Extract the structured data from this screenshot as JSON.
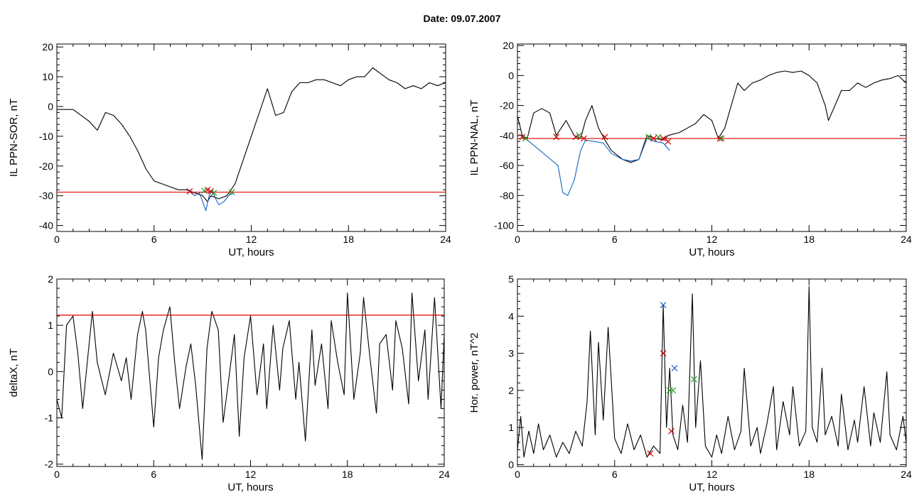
{
  "figure_title": "Date:  09.07.2007",
  "chart_data": [
    {
      "type": "line",
      "ylabel": "IL PPN-SOR, nT",
      "xlabel": "UT, hours",
      "xlim": [
        0,
        24
      ],
      "ylim": [
        -42,
        21
      ],
      "xticks": [
        0,
        6,
        12,
        18,
        24
      ],
      "yticks": [
        -40,
        -30,
        -20,
        -10,
        0,
        10,
        20
      ],
      "threshold": -28.8,
      "series": [
        {
          "color": "#000000",
          "x": [
            0,
            0.5,
            1,
            1.5,
            2,
            2.5,
            3,
            3.5,
            4,
            4.5,
            5,
            5.5,
            6,
            6.5,
            7,
            7.5,
            8,
            8.5,
            9,
            9.3,
            9.5,
            10,
            10.5,
            11,
            11.5,
            12,
            12.5,
            13,
            13.5,
            14,
            14.5,
            15,
            15.5,
            16,
            16.5,
            17,
            17.5,
            18,
            18.5,
            19,
            19.5,
            20,
            20.5,
            21,
            21.5,
            22,
            22.5,
            23,
            23.5,
            24
          ],
          "y": [
            -1,
            -1,
            -1,
            -3,
            -5,
            -8,
            -2,
            -3,
            -6,
            -10,
            -15,
            -21,
            -25,
            -26,
            -27,
            -28,
            -28,
            -29,
            -30,
            -32,
            -30,
            -31,
            -30,
            -26,
            -18,
            -10,
            -2,
            6,
            -3,
            -2,
            5,
            8,
            8,
            9,
            9,
            8,
            7,
            9,
            10,
            10,
            13,
            11,
            9,
            8,
            6,
            7,
            6,
            8,
            7,
            8
          ]
        },
        {
          "color": "#1565c0",
          "x": [
            8.2,
            8.5,
            8.8,
            9.0,
            9.2,
            9.4,
            9.6,
            9.8,
            10.0,
            10.3,
            10.6,
            10.9
          ],
          "y": [
            -28,
            -30,
            -29,
            -32,
            -35,
            -30,
            -28,
            -31,
            -33,
            -32,
            -30,
            -29
          ]
        }
      ],
      "markers": [
        {
          "x": 8.2,
          "y": -28.5,
          "color": "#cc0000"
        },
        {
          "x": 9.1,
          "y": -28.3,
          "color": "#2a9d2a"
        },
        {
          "x": 9.3,
          "y": -28.0,
          "color": "#cc0000"
        },
        {
          "x": 9.5,
          "y": -28.5,
          "color": "#cc0000"
        },
        {
          "x": 9.7,
          "y": -29.0,
          "color": "#2a9d2a"
        },
        {
          "x": 10.8,
          "y": -28.8,
          "color": "#2a9d2a"
        }
      ]
    },
    {
      "type": "line",
      "ylabel": "IL PPN-NAL, nT",
      "xlabel": "UT, hours",
      "xlim": [
        0,
        24
      ],
      "ylim": [
        -104,
        21
      ],
      "xticks": [
        0,
        6,
        12,
        18,
        24
      ],
      "yticks": [
        -100,
        -80,
        -60,
        -40,
        -20,
        0,
        20
      ],
      "threshold": -42,
      "series": [
        {
          "color": "#000000",
          "x": [
            0,
            0.3,
            0.6,
            1,
            1.5,
            2,
            2.4,
            3,
            3.5,
            3.9,
            4.2,
            4.6,
            5,
            5.4,
            5.8,
            6.5,
            7,
            7.5,
            8,
            8.5,
            9,
            9.3,
            10,
            10.5,
            11,
            11.5,
            12,
            12.4,
            12.8,
            13.2,
            13.6,
            14,
            14.5,
            15,
            15.5,
            16,
            16.5,
            17,
            17.5,
            18,
            18.5,
            19,
            19.2,
            19.6,
            20,
            20.5,
            21,
            21.5,
            22,
            22.5,
            23,
            23.5,
            24
          ],
          "y": [
            -27,
            -40,
            -42,
            -25,
            -22,
            -25,
            -40,
            -30,
            -40,
            -42,
            -30,
            -20,
            -35,
            -43,
            -50,
            -56,
            -58,
            -56,
            -40,
            -42,
            -43,
            -40,
            -38,
            -35,
            -32,
            -26,
            -30,
            -42,
            -35,
            -20,
            -5,
            -10,
            -5,
            -3,
            0,
            2,
            3,
            2,
            3,
            0,
            -5,
            -20,
            -30,
            -20,
            -10,
            -10,
            -5,
            -8,
            -5,
            -3,
            -2,
            0,
            -5
          ]
        },
        {
          "color": "#1565c0",
          "x": [
            0.2,
            0.5,
            2.5,
            2.8,
            3.1,
            3.5,
            3.9,
            4.2,
            5.3,
            5.8,
            6.5,
            7,
            7.5,
            8,
            8.5,
            9,
            9.4
          ],
          "y": [
            -40,
            -42,
            -60,
            -78,
            -80,
            -70,
            -50,
            -43,
            -45,
            -52,
            -56,
            -57,
            -56,
            -42,
            -44,
            -45,
            -50
          ]
        }
      ],
      "markers": [
        {
          "x": 0.3,
          "y": -41,
          "color": "#cc0000"
        },
        {
          "x": 0.5,
          "y": -42,
          "color": "#2a9d2a"
        },
        {
          "x": 2.4,
          "y": -41,
          "color": "#cc0000"
        },
        {
          "x": 3.6,
          "y": -41,
          "color": "#cc0000"
        },
        {
          "x": 3.8,
          "y": -40,
          "color": "#2a9d2a"
        },
        {
          "x": 4.1,
          "y": -42,
          "color": "#cc0000"
        },
        {
          "x": 5.4,
          "y": -41,
          "color": "#cc0000"
        },
        {
          "x": 8.1,
          "y": -41,
          "color": "#2a9d2a"
        },
        {
          "x": 8.4,
          "y": -42,
          "color": "#cc0000"
        },
        {
          "x": 8.7,
          "y": -41,
          "color": "#2a9d2a"
        },
        {
          "x": 9.0,
          "y": -42,
          "color": "#cc0000"
        },
        {
          "x": 9.3,
          "y": -44,
          "color": "#cc0000"
        },
        {
          "x": 12.5,
          "y": -42,
          "color": "#cc0000"
        },
        {
          "x": 12.6,
          "y": -42,
          "color": "#2a9d2a"
        }
      ]
    },
    {
      "type": "line",
      "ylabel": "deltaX, nT",
      "xlabel": "UT, hours",
      "xlim": [
        0,
        24
      ],
      "ylim": [
        -2.05,
        2
      ],
      "xticks": [
        0,
        6,
        12,
        18,
        24
      ],
      "yticks": [
        -2,
        -1,
        0,
        1,
        2
      ],
      "threshold": 1.22,
      "series": [
        {
          "color": "#000000",
          "x": [
            0,
            0.3,
            0.6,
            1,
            1.3,
            1.6,
            2,
            2.2,
            2.5,
            3,
            3.5,
            4,
            4.3,
            4.6,
            5,
            5.3,
            5.5,
            6,
            6.3,
            6.6,
            7,
            7.3,
            7.6,
            8,
            8.3,
            8.6,
            9,
            9.3,
            9.6,
            10,
            10.3,
            10.6,
            11,
            11.3,
            11.6,
            12,
            12.4,
            12.8,
            13,
            13.4,
            13.8,
            14,
            14.4,
            14.8,
            15,
            15.4,
            15.8,
            16,
            16.4,
            16.8,
            17,
            17.4,
            17.8,
            18,
            18.4,
            18.8,
            19,
            19.4,
            19.8,
            20,
            20.4,
            20.8,
            21,
            21.4,
            21.8,
            22,
            22.4,
            22.8,
            23,
            23.4,
            23.8,
            24
          ],
          "y": [
            -0.6,
            -1.0,
            1.0,
            1.2,
            0.4,
            -0.8,
            0.6,
            1.3,
            0.2,
            -0.5,
            0.4,
            -0.2,
            0.3,
            -0.6,
            0.8,
            1.3,
            0.9,
            -1.2,
            0.3,
            0.9,
            1.4,
            0.2,
            -0.8,
            0.1,
            0.6,
            -0.3,
            -1.9,
            0.5,
            1.3,
            0.9,
            -1.1,
            -0.3,
            0.8,
            -1.4,
            0.3,
            1.2,
            -0.5,
            0.6,
            -0.8,
            1.0,
            -0.4,
            0.5,
            1.1,
            -0.6,
            0.2,
            -1.5,
            0.9,
            -0.3,
            0.6,
            -0.8,
            1.1,
            0.2,
            -0.5,
            1.7,
            -0.6,
            0.4,
            1.6,
            0.3,
            -0.9,
            0.6,
            0.8,
            -0.4,
            1.1,
            0.5,
            -0.7,
            1.7,
            -0.2,
            0.9,
            -0.6,
            1.6,
            -0.8,
            0.8
          ]
        }
      ],
      "markers": []
    },
    {
      "type": "line",
      "ylabel": "Hor. power, nT^2",
      "xlabel": "UT, hours",
      "xlim": [
        0,
        24
      ],
      "ylim": [
        -0.05,
        5
      ],
      "xticks": [
        0,
        6,
        12,
        18,
        24
      ],
      "yticks": [
        0,
        1,
        2,
        3,
        4,
        5
      ],
      "threshold": null,
      "series": [
        {
          "color": "#000000",
          "x": [
            0,
            0.2,
            0.4,
            0.7,
            1,
            1.3,
            1.6,
            2,
            2.4,
            2.8,
            3.2,
            3.6,
            4,
            4.3,
            4.5,
            4.8,
            5,
            5.3,
            5.6,
            6,
            6.4,
            6.8,
            7.2,
            7.6,
            8,
            8.4,
            8.8,
            9,
            9.2,
            9.4,
            9.6,
            9.9,
            10.2,
            10.5,
            10.8,
            11,
            11.3,
            11.6,
            12,
            12.3,
            12.6,
            13,
            13.4,
            13.8,
            14,
            14.4,
            14.8,
            15,
            15.4,
            15.8,
            16,
            16.4,
            16.8,
            17,
            17.4,
            17.8,
            18,
            18.2,
            18.5,
            18.8,
            19,
            19.4,
            19.8,
            20,
            20.4,
            20.8,
            21,
            21.4,
            21.8,
            22,
            22.4,
            22.8,
            23,
            23.4,
            23.8,
            24
          ],
          "y": [
            0.4,
            1.3,
            0.2,
            0.9,
            0.3,
            1.1,
            0.4,
            0.8,
            0.2,
            0.6,
            0.3,
            0.9,
            0.5,
            1.7,
            3.6,
            0.8,
            3.3,
            1.2,
            3.7,
            0.7,
            0.3,
            1.1,
            0.4,
            0.8,
            0.2,
            0.5,
            0.3,
            4.3,
            1.0,
            2.6,
            0.8,
            0.4,
            1.6,
            0.6,
            4.6,
            1.0,
            2.8,
            0.5,
            0.2,
            0.8,
            0.3,
            1.3,
            0.4,
            0.9,
            2.6,
            0.5,
            1.0,
            0.3,
            1.1,
            2.1,
            0.4,
            1.7,
            0.8,
            2.1,
            0.5,
            0.9,
            4.8,
            1.0,
            0.6,
            2.6,
            0.8,
            1.3,
            0.5,
            1.9,
            0.4,
            1.2,
            0.6,
            2.1,
            0.5,
            1.4,
            0.6,
            2.5,
            0.8,
            0.4,
            1.3,
            0.6
          ]
        }
      ],
      "markers": [
        {
          "x": 8.2,
          "y": 0.3,
          "color": "#cc0000"
        },
        {
          "x": 9.0,
          "y": 4.3,
          "color": "#1565c0"
        },
        {
          "x": 9.0,
          "y": 3.0,
          "color": "#cc0000"
        },
        {
          "x": 9.4,
          "y": 2.0,
          "color": "#2a9d2a"
        },
        {
          "x": 9.6,
          "y": 2.0,
          "color": "#2a9d2a"
        },
        {
          "x": 9.7,
          "y": 2.6,
          "color": "#1565c0"
        },
        {
          "x": 9.5,
          "y": 0.9,
          "color": "#cc0000"
        },
        {
          "x": 10.9,
          "y": 2.3,
          "color": "#2a9d2a"
        }
      ]
    }
  ]
}
